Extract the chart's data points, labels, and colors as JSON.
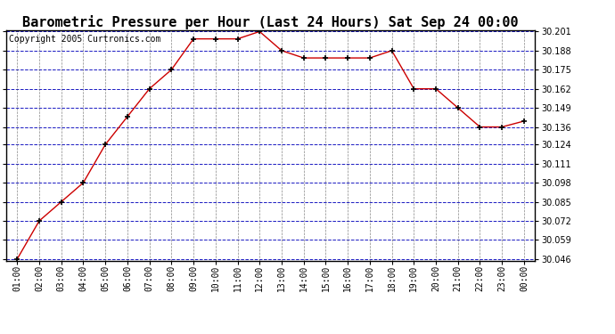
{
  "title": "Barometric Pressure per Hour (Last 24 Hours) Sat Sep 24 00:00",
  "copyright": "Copyright 2005 Curtronics.com",
  "x_labels": [
    "01:00",
    "02:00",
    "03:00",
    "04:00",
    "05:00",
    "06:00",
    "07:00",
    "08:00",
    "09:00",
    "10:00",
    "11:00",
    "12:00",
    "13:00",
    "14:00",
    "15:00",
    "16:00",
    "17:00",
    "18:00",
    "19:00",
    "20:00",
    "21:00",
    "22:00",
    "23:00",
    "00:00"
  ],
  "y_values": [
    30.046,
    30.072,
    30.085,
    30.098,
    30.124,
    30.143,
    30.162,
    30.175,
    30.196,
    30.196,
    30.196,
    30.201,
    30.188,
    30.183,
    30.183,
    30.183,
    30.183,
    30.188,
    30.162,
    30.162,
    30.149,
    30.136,
    30.136,
    30.14
  ],
  "ylim_min": 30.046,
  "ylim_max": 30.201,
  "yticks": [
    30.046,
    30.059,
    30.072,
    30.085,
    30.098,
    30.111,
    30.124,
    30.136,
    30.149,
    30.162,
    30.175,
    30.188,
    30.201
  ],
  "line_color": "#cc0000",
  "marker": "+",
  "marker_color": "#000000",
  "bg_color": "#ffffff",
  "plot_bg_color": "#ffffff",
  "grid_color_h": "#0000bb",
  "grid_color_v": "#555555",
  "title_fontsize": 11,
  "copyright_fontsize": 7,
  "tick_fontsize": 7
}
